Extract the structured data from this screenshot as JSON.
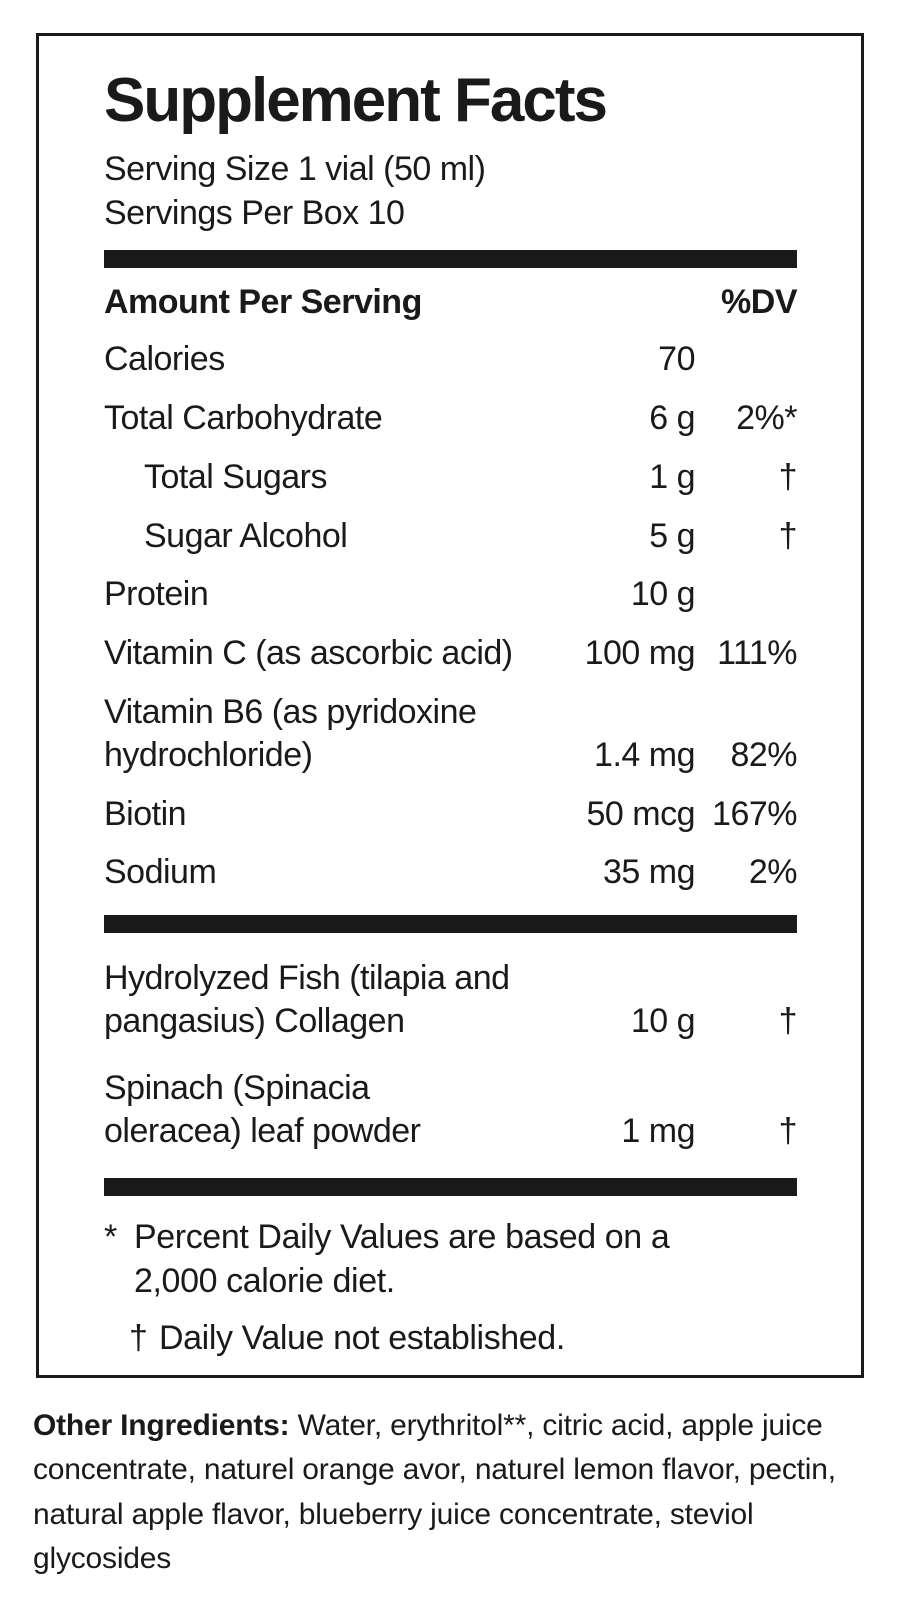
{
  "colors": {
    "ink": "#1c1a18",
    "background": "#ffffff"
  },
  "label": {
    "title": "Supplement Facts",
    "serving_size": "Serving Size 1 vial (50 ml)",
    "servings_per_box": "Servings Per Box 10",
    "columns": {
      "amount_header": "Amount Per Serving",
      "dv_header": "%DV"
    },
    "nutrients": [
      {
        "name": "Calories",
        "amount": "70",
        "dv": "",
        "indent": false
      },
      {
        "name": "Total Carbohydrate",
        "amount": "6 g",
        "dv": "2%*",
        "indent": false
      },
      {
        "name": "Total Sugars",
        "amount": "1 g",
        "dv": "†",
        "indent": true
      },
      {
        "name": "Sugar Alcohol",
        "amount": "5 g",
        "dv": "†",
        "indent": true
      },
      {
        "name": "Protein",
        "amount": "10 g",
        "dv": "",
        "indent": false
      },
      {
        "name": "Vitamin C (as ascorbic acid)",
        "amount": "100 mg",
        "dv": "111%",
        "indent": false
      },
      {
        "name": "Vitamin B6 (as pyridoxine hydrochloride)",
        "amount": "1.4 mg",
        "dv": "82%",
        "indent": false
      },
      {
        "name": "Biotin",
        "amount": "50 mcg",
        "dv": "167%",
        "indent": false
      },
      {
        "name": "Sodium",
        "amount": "35 mg",
        "dv": "2%",
        "indent": false
      }
    ],
    "botanicals": [
      {
        "name": "Hydrolyzed Fish (tilapia and pangasius) Collagen",
        "amount": "10 g",
        "dv": "†",
        "indent": false
      },
      {
        "name": "Spinach (Spinacia oleracea) leaf powder",
        "amount": "1 mg",
        "dv": "†",
        "indent": false
      }
    ],
    "footnotes": [
      {
        "marker": "*",
        "text": "Percent Daily Values are based on a 2,000 calorie diet."
      },
      {
        "marker": "†",
        "text": "Daily Value not established."
      }
    ]
  },
  "other_ingredients": {
    "label": "Other Ingredients:",
    "text": " Water, erythritol**, citric acid, apple juice concentrate, naturel orange avor, naturel lemon flavor, pectin, natural apple flavor, blueberry juice concentrate, steviol glycosides"
  }
}
